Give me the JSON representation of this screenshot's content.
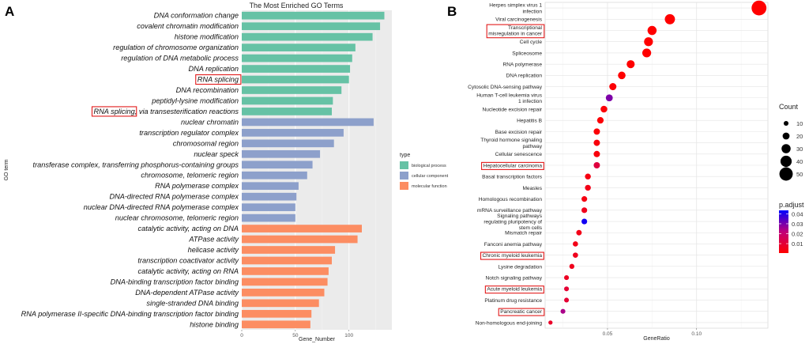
{
  "panels": {
    "a_letter": "A",
    "b_letter": "B"
  },
  "chart_data": [
    {
      "type": "bar",
      "title": "The Most Enriched GO Terms",
      "xlabel": "Gene_Number",
      "ylabel": "GO term",
      "xlim": [
        0,
        140
      ],
      "xticks": [
        0,
        50,
        100
      ],
      "categories": [
        "DNA conformation change",
        "covalent chromatin modification",
        "histone modification",
        "regulation of chromosome organization",
        "regulation of DNA metabolic process",
        "DNA replication",
        "RNA splicing",
        "DNA recombination",
        "peptidyl-lysine modification",
        "RNA splicing, via transesterification reactions",
        "nuclear chromatin",
        "transcription regulator complex",
        "chromosomal region",
        "nuclear speck",
        "transferase complex, transferring phosphorus-containing groups",
        "chromosome, telomeric region",
        "RNA polymerase complex",
        "DNA-directed RNA polymerase complex",
        "nuclear DNA-directed RNA polymerase complex",
        "nuclear chromosome, telomeric region",
        "catalytic activity, acting on DNA",
        "ATPase activity",
        "helicase activity",
        "transcription coactivator activity",
        "catalytic activity, acting on RNA",
        "DNA-binding transcription factor binding",
        "DNA-dependent ATPase activity",
        "single-stranded DNA binding",
        "RNA polymerase II-specific DNA-binding transcription factor binding",
        "histone binding"
      ],
      "values": [
        133,
        129,
        122,
        106,
        103,
        101,
        100,
        93,
        85,
        84,
        123,
        95,
        86,
        73,
        66,
        61,
        53,
        51,
        50,
        50,
        112,
        108,
        87,
        84,
        81,
        80,
        77,
        72,
        65,
        64
      ],
      "types": [
        "biological process",
        "biological process",
        "biological process",
        "biological process",
        "biological process",
        "biological process",
        "biological process",
        "biological process",
        "biological process",
        "biological process",
        "cellular component",
        "cellular component",
        "cellular component",
        "cellular component",
        "cellular component",
        "cellular component",
        "cellular component",
        "cellular component",
        "cellular component",
        "cellular component",
        "molecular function",
        "molecular function",
        "molecular function",
        "molecular function",
        "molecular function",
        "molecular function",
        "molecular function",
        "molecular function",
        "molecular function",
        "molecular function"
      ],
      "legend": {
        "title": "type",
        "entries": [
          {
            "label": "biological process",
            "color": "#66c2a5"
          },
          {
            "label": "cellular component",
            "color": "#8da0cb"
          },
          {
            "label": "molecular function",
            "color": "#fc8d62"
          }
        ],
        "position": "right"
      },
      "highlights": [
        "RNA splicing",
        "RNA splicing (prefix of 'RNA splicing, via transesterification reactions')"
      ]
    },
    {
      "type": "scatter",
      "xlabel": "GeneRatio",
      "xlim": [
        0.015,
        0.14
      ],
      "xticks": [
        0.05,
        0.1
      ],
      "xtick_labels": [
        "0.05",
        "0.10"
      ],
      "categories": [
        "Herpes simplex virus 1\ninfection",
        "Viral carcinogenesis",
        "Transcriptional\nmisregulation in cancer",
        "Cell cycle",
        "Spliceosome",
        "RNA polymerase",
        "DNA replication",
        "Cytosolic DNA-sensing pathway",
        "Human T-cell leukemia virus\n1 infection",
        "Nucleotide excision repair",
        "Hepatitis B",
        "Base excision repair",
        "Thyroid hormone signaling\npathway",
        "Cellular senescence",
        "Hepatocellular carcinoma",
        "Basal transcription factors",
        "Measles",
        "Homologous recombination",
        "mRNA surveillance pathway",
        "Signaling pathways\nregulating pluripotency of\nstem cells",
        "Mismatch repair",
        "Fanconi anemia pathway",
        "Chronic myeloid leukemia",
        "Lysine degradation",
        "Notch signaling pathway",
        "Acute myeloid leukemia",
        "Platinum drug resistance",
        "Pancreatic cancer",
        "Non-homologous end-joining"
      ],
      "gene_ratio": [
        0.135,
        0.085,
        0.075,
        0.073,
        0.072,
        0.063,
        0.058,
        0.053,
        0.051,
        0.048,
        0.046,
        0.044,
        0.044,
        0.044,
        0.044,
        0.039,
        0.039,
        0.037,
        0.037,
        0.037,
        0.034,
        0.032,
        0.032,
        0.03,
        0.027,
        0.027,
        0.027,
        0.025,
        0.018
      ],
      "count": [
        57,
        35,
        30,
        29,
        29,
        25,
        23,
        21,
        20,
        19,
        18,
        17,
        17,
        17,
        17,
        15,
        15,
        14,
        14,
        14,
        13,
        12,
        12,
        11,
        10,
        10,
        10,
        10,
        7
      ],
      "p_adjust": [
        0.001,
        0.001,
        0.001,
        0.001,
        0.001,
        0.001,
        0.001,
        0.002,
        0.03,
        0.002,
        0.002,
        0.002,
        0.003,
        0.003,
        0.012,
        0.004,
        0.005,
        0.004,
        0.006,
        0.042,
        0.005,
        0.005,
        0.006,
        0.006,
        0.007,
        0.01,
        0.01,
        0.025,
        0.008
      ],
      "highlights": [
        "Transcriptional\nmisregulation in cancer",
        "Hepatocellular carcinoma",
        "Chronic myeloid leukemia",
        "Acute myeloid leukemia",
        "Pancreatic cancer"
      ],
      "size_legend": {
        "title": "Count",
        "values": [
          10,
          20,
          30,
          40,
          50
        ]
      },
      "color_legend": {
        "title": "p.adjust",
        "ticks": [
          0.04,
          0.03,
          0.02,
          0.01
        ],
        "tick_labels": [
          "0.04",
          "0.03",
          "0.02",
          "0.01"
        ],
        "low_color": "#ff0000",
        "high_color": "#0000ff"
      }
    }
  ]
}
